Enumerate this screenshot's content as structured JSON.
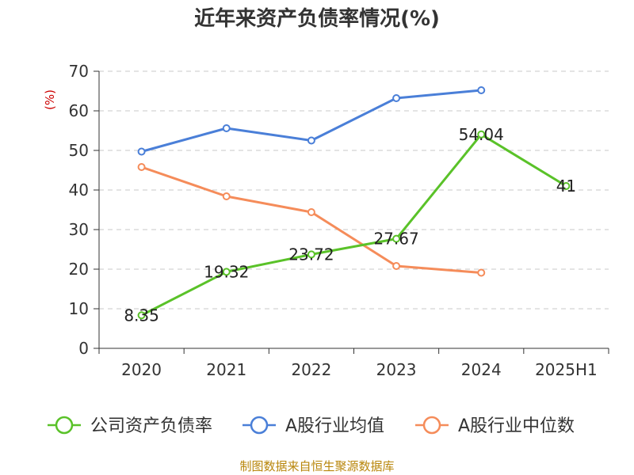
{
  "chart_data": {
    "type": "line",
    "title": "近年来资产负债率情况(%)",
    "ylabel": "(%)",
    "categories": [
      "2020",
      "2021",
      "2022",
      "2023",
      "2024",
      "2025H1"
    ],
    "y_ticks": [
      "0",
      "10",
      "20",
      "30",
      "40",
      "50",
      "60",
      "70"
    ],
    "ylim": [
      0,
      70
    ],
    "grid": true,
    "legend_position": "bottom",
    "series": [
      {
        "name": "公司资产负债率",
        "color": "#5ac229",
        "values": [
          8.35,
          19.32,
          23.72,
          27.67,
          54.04,
          41
        ],
        "labels": [
          "8.35",
          "19.32",
          "23.72",
          "27.67",
          "54.04",
          "41"
        ]
      },
      {
        "name": "A股行业均值",
        "color": "#4a7fd8",
        "values": [
          49.7,
          55.6,
          52.5,
          63.2,
          65.2,
          null
        ]
      },
      {
        "name": "A股行业中位数",
        "color": "#f58c5a",
        "values": [
          45.8,
          38.4,
          34.4,
          20.8,
          19.1,
          null
        ]
      }
    ]
  },
  "source": "制图数据来自恒生聚源数据库"
}
